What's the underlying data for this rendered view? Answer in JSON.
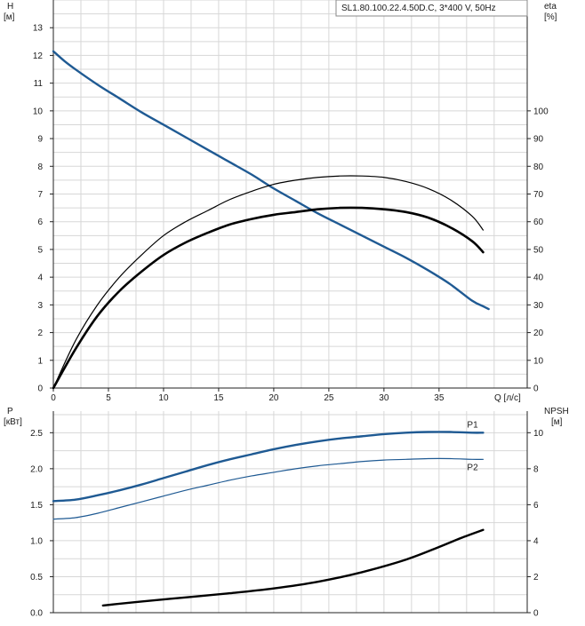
{
  "chart_data": [
    {
      "type": "line",
      "title": "SL1.80.100.22.4.50D.C, 3*400 V, 50Hz",
      "left_axis": {
        "label_line1": "H",
        "label_line2": "[м]",
        "range": [
          0,
          14
        ],
        "ticks": [
          0,
          1,
          2,
          3,
          4,
          5,
          6,
          7,
          8,
          9,
          10,
          11,
          12,
          13
        ]
      },
      "right_axis": {
        "label_line1": "eta",
        "label_line2": "[%]",
        "range": [
          0,
          140
        ],
        "ticks": [
          0,
          10,
          20,
          30,
          40,
          50,
          60,
          70,
          80,
          90,
          100
        ]
      },
      "x_axis": {
        "label": "Q [л/с]",
        "range": [
          0,
          43
        ],
        "ticks": [
          0,
          5,
          10,
          15,
          20,
          25,
          30,
          35
        ]
      },
      "grid": true,
      "series": [
        {
          "key": "H",
          "axis": "left",
          "color": "#1f5a93",
          "width": 2.4,
          "points": [
            [
              0,
              12.15
            ],
            [
              1,
              11.8
            ],
            [
              2,
              11.5
            ],
            [
              4,
              10.95
            ],
            [
              6,
              10.45
            ],
            [
              8,
              9.95
            ],
            [
              10,
              9.5
            ],
            [
              12,
              9.05
            ],
            [
              14,
              8.6
            ],
            [
              16,
              8.15
            ],
            [
              18,
              7.7
            ],
            [
              20,
              7.2
            ],
            [
              22,
              6.75
            ],
            [
              24,
              6.3
            ],
            [
              26,
              5.9
            ],
            [
              28,
              5.5
            ],
            [
              30,
              5.1
            ],
            [
              32,
              4.7
            ],
            [
              34,
              4.25
            ],
            [
              36,
              3.75
            ],
            [
              38,
              3.15
            ],
            [
              39,
              2.95
            ],
            [
              39.5,
              2.85
            ]
          ]
        },
        {
          "key": "eta_thin",
          "axis": "right",
          "color": "#000000",
          "width": 1.2,
          "points": [
            [
              0,
              0
            ],
            [
              2,
              17
            ],
            [
              4,
              30
            ],
            [
              6,
              40
            ],
            [
              8,
              48
            ],
            [
              10,
              55
            ],
            [
              12,
              60
            ],
            [
              14,
              64
            ],
            [
              16,
              68
            ],
            [
              18,
              71
            ],
            [
              20,
              73.5
            ],
            [
              22,
              75
            ],
            [
              24,
              76
            ],
            [
              26,
              76.5
            ],
            [
              28,
              76.5
            ],
            [
              30,
              76
            ],
            [
              32,
              74.5
            ],
            [
              34,
              72
            ],
            [
              36,
              68
            ],
            [
              38,
              62
            ],
            [
              39,
              57
            ]
          ]
        },
        {
          "key": "eta_bold",
          "axis": "right",
          "color": "#000000",
          "width": 2.6,
          "points": [
            [
              0,
              0
            ],
            [
              2,
              14
            ],
            [
              4,
              26
            ],
            [
              6,
              35
            ],
            [
              8,
              42
            ],
            [
              10,
              48
            ],
            [
              12,
              52.5
            ],
            [
              14,
              56
            ],
            [
              16,
              59
            ],
            [
              18,
              61
            ],
            [
              20,
              62.5
            ],
            [
              22,
              63.5
            ],
            [
              24,
              64.5
            ],
            [
              26,
              65
            ],
            [
              28,
              65
            ],
            [
              30,
              64.5
            ],
            [
              32,
              63.5
            ],
            [
              34,
              61.5
            ],
            [
              36,
              58
            ],
            [
              38,
              53
            ],
            [
              39,
              49
            ]
          ]
        }
      ]
    },
    {
      "type": "line",
      "left_axis": {
        "label_line1": "P",
        "label_line2": "[кВт]",
        "range": [
          0,
          2.8
        ],
        "ticks": [
          "0.0",
          "0.5",
          "1.0",
          "1.5",
          "2.0",
          "2.5"
        ]
      },
      "right_axis": {
        "label_line1": "NPSH",
        "label_line2": "[м]",
        "range": [
          0,
          11.2
        ],
        "ticks": [
          0,
          2,
          4,
          6,
          8,
          10
        ]
      },
      "x_axis": {
        "range": [
          0,
          43
        ]
      },
      "grid": true,
      "series": [
        {
          "key": "P1",
          "name": "P1",
          "axis": "left",
          "color": "#1f5a93",
          "width": 2.4,
          "points": [
            [
              0,
              1.55
            ],
            [
              2,
              1.57
            ],
            [
              4,
              1.63
            ],
            [
              6,
              1.7
            ],
            [
              8,
              1.78
            ],
            [
              10,
              1.87
            ],
            [
              12,
              1.96
            ],
            [
              14,
              2.05
            ],
            [
              16,
              2.13
            ],
            [
              18,
              2.2
            ],
            [
              20,
              2.27
            ],
            [
              22,
              2.33
            ],
            [
              24,
              2.38
            ],
            [
              26,
              2.42
            ],
            [
              28,
              2.45
            ],
            [
              30,
              2.48
            ],
            [
              32,
              2.5
            ],
            [
              34,
              2.51
            ],
            [
              36,
              2.51
            ],
            [
              38,
              2.5
            ],
            [
              39,
              2.5
            ]
          ]
        },
        {
          "key": "P2",
          "name": "P2",
          "axis": "left",
          "color": "#1f5a93",
          "width": 1.2,
          "points": [
            [
              0,
              1.3
            ],
            [
              2,
              1.32
            ],
            [
              4,
              1.38
            ],
            [
              6,
              1.46
            ],
            [
              8,
              1.54
            ],
            [
              10,
              1.62
            ],
            [
              12,
              1.7
            ],
            [
              14,
              1.77
            ],
            [
              16,
              1.84
            ],
            [
              18,
              1.9
            ],
            [
              20,
              1.95
            ],
            [
              22,
              2.0
            ],
            [
              24,
              2.04
            ],
            [
              26,
              2.07
            ],
            [
              28,
              2.1
            ],
            [
              30,
              2.12
            ],
            [
              32,
              2.13
            ],
            [
              34,
              2.14
            ],
            [
              36,
              2.14
            ],
            [
              38,
              2.13
            ],
            [
              39,
              2.13
            ]
          ]
        },
        {
          "key": "NPSH",
          "axis": "right",
          "color": "#000000",
          "width": 2.4,
          "points": [
            [
              4.5,
              0.4
            ],
            [
              8,
              0.62
            ],
            [
              12,
              0.85
            ],
            [
              16,
              1.08
            ],
            [
              20,
              1.35
            ],
            [
              24,
              1.72
            ],
            [
              28,
              2.25
            ],
            [
              32,
              2.95
            ],
            [
              35,
              3.65
            ],
            [
              37,
              4.15
            ],
            [
              39,
              4.6
            ]
          ]
        }
      ]
    }
  ]
}
